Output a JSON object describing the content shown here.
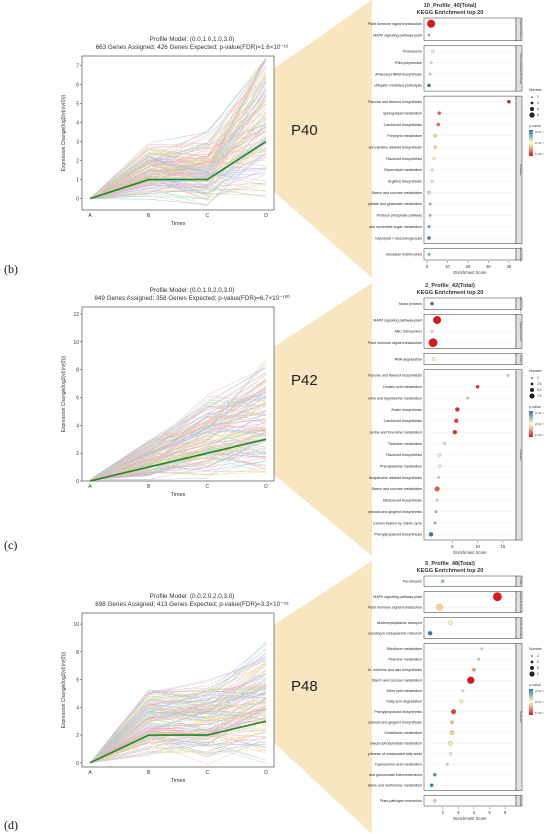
{
  "chart_data": [
    {
      "type": "line",
      "panel_label": "",
      "title": "Profile Model: (0.0,1.0,1.0,3.0)",
      "subtitle": "663 Genes Assigned; 426 Genes Expected; p-value(FDR)=1.6×10⁻¹⁶",
      "xlabel": "Times",
      "ylabel": "Expression Change(log2(v(i)/v(0)))",
      "categories": [
        "A",
        "B",
        "C",
        "D"
      ],
      "ylim": [
        -0.6,
        7.5
      ],
      "yticks": [
        0,
        1,
        2,
        3,
        4,
        5,
        6,
        7
      ],
      "profile": [
        0,
        1,
        1,
        3
      ],
      "tag": "P40"
    },
    {
      "type": "scatter",
      "title": "10_Profile_40(Total)",
      "subtitle": "KEGG Enrichment top 20",
      "xlabel": "Enrichment Score",
      "xlim": [
        0,
        42
      ],
      "xticks": [
        0,
        10,
        20,
        30,
        40
      ],
      "size_legend_title": "Number",
      "size_legend": [
        "2",
        "4",
        "6",
        "8"
      ],
      "color_legend_title": "p-value",
      "color_legend": [
        "3×10⁻¹",
        "2×10⁻¹",
        "1×10⁻¹"
      ],
      "groups": [
        {
          "label": "Organismal Systems",
          "terms": [
            {
              "term": "Plant hormone signal transduction",
              "x": 2,
              "count": 8,
              "p": 0.02
            },
            {
              "term": "MAPK signaling pathway-plant",
              "x": 1,
              "count": 1,
              "p": 0.25
            }
          ]
        },
        {
          "label": "Genetic Information Processing",
          "terms": [
            {
              "term": "Proteasome",
              "x": 3,
              "count": 2,
              "p": 0.18
            },
            {
              "term": "RNA polymerase",
              "x": 2,
              "count": 1,
              "p": 0.2
            },
            {
              "term": "Aminoacyl-tRNA biosynthesis",
              "x": 1.5,
              "count": 1,
              "p": 0.22
            },
            {
              "term": "Ubiquitin mediated proteolysis",
              "x": 1,
              "count": 2,
              "p": 0.3
            }
          ]
        },
        {
          "label": "Metabolism",
          "terms": [
            {
              "term": "Flavone and flavonol biosynthesis",
              "x": 40,
              "count": 2,
              "p": 0.02
            },
            {
              "term": "Sphingolipid metabolism",
              "x": 6,
              "count": 2,
              "p": 0.05
            },
            {
              "term": "Carotenoid biosynthesis",
              "x": 5.5,
              "count": 2,
              "p": 0.06
            },
            {
              "term": "Porphyrin metabolism",
              "x": 4,
              "count": 2,
              "p": 0.12
            },
            {
              "term": "Tropane, piperidine and pyridine alkaloid biosynthesis",
              "x": 4,
              "count": 2,
              "p": 0.13
            },
            {
              "term": "Flavonoid biosynthesis",
              "x": 3.5,
              "count": 2,
              "p": 0.15
            },
            {
              "term": "Glycerolipid metabolism",
              "x": 2.5,
              "count": 1,
              "p": 0.2
            },
            {
              "term": "Arginine biosynthesis",
              "x": 2.5,
              "count": 1,
              "p": 0.2
            },
            {
              "term": "Starch and sucrose metabolism",
              "x": 1,
              "count": 2,
              "p": 0.22
            },
            {
              "term": "Alanine, aspartate and glutamate metabolism",
              "x": 1.5,
              "count": 1,
              "p": 0.25
            },
            {
              "term": "Pentose phosphate pathway",
              "x": 1.5,
              "count": 1,
              "p": 0.25
            },
            {
              "term": "Amino sugar and nucleotide sugar metabolism",
              "x": 1,
              "count": 1,
              "p": 0.28
            },
            {
              "term": "Glycolysis / Gluconeogenesis",
              "x": 1,
              "count": 2,
              "p": 0.3
            }
          ]
        },
        {
          "label": "Environmental",
          "terms": [
            {
              "term": "Circadian rhythm-plant",
              "x": 1,
              "count": 1,
              "p": 0.26
            }
          ]
        }
      ]
    },
    {
      "type": "line",
      "panel_label": "(b)",
      "title": "Profile Model: (0.0,1.0,2.0,3.0)",
      "subtitle": "949 Genes Assigned; 358 Genes Expected; p-value(FDR)=6.7×10⁻¹⁰⁰",
      "xlabel": "Times",
      "ylabel": "Expression Change(log2(v(i)/v(0)))",
      "categories": [
        "A",
        "B",
        "C",
        "D"
      ],
      "ylim": [
        0,
        12.5
      ],
      "yticks": [
        0,
        2,
        4,
        6,
        8,
        10,
        12
      ],
      "profile": [
        0,
        1,
        2,
        3
      ],
      "tag": "P42"
    },
    {
      "type": "scatter",
      "title": "2_Profile_42(Total)",
      "subtitle": "KEGG Enrichment top 20",
      "xlabel": "Enrichment Score",
      "xlim": [
        0,
        17
      ],
      "xticks": [
        5,
        10,
        15
      ],
      "size_legend_title": "Number",
      "size_legend": [
        "2",
        "2.5",
        "5.0",
        "7.5"
      ],
      "color_legend_title": "p-value",
      "color_legend": [
        "3×10⁻¹",
        "2×10⁻¹",
        "1×10⁻¹"
      ],
      "groups": [
        {
          "label": "Cellular Processes",
          "terms": [
            {
              "term": "Motor proteins",
              "x": 1,
              "count": 2,
              "p": 0.3
            }
          ]
        },
        {
          "label": "Organismal Systems",
          "terms": [
            {
              "term": "MAPK signaling pathway-plant",
              "x": 2,
              "count": 8,
              "p": 0.02
            },
            {
              "term": "ABC transporters",
              "x": 1,
              "count": 1,
              "p": 0.22
            },
            {
              "term": "Plant hormone signal transduction",
              "x": 1.2,
              "count": 9,
              "p": 0.02
            }
          ]
        },
        {
          "label": "Genetic",
          "terms": [
            {
              "term": "RNA degradation",
              "x": 1.3,
              "count": 2,
              "p": 0.15
            }
          ]
        },
        {
          "label": "Metabolism",
          "terms": [
            {
              "term": "Flavone and flavonol biosynthesis",
              "x": 16,
              "count": 1,
              "p": 0.22
            },
            {
              "term": "Linoleic acid metabolism",
              "x": 10,
              "count": 2,
              "p": 0.03
            },
            {
              "term": "Taurine and hypotaurine metabolism",
              "x": 8,
              "count": 1,
              "p": 0.22
            },
            {
              "term": "Zeatin biosynthesis",
              "x": 6,
              "count": 3,
              "p": 0.03
            },
            {
              "term": "Carotenoid biosynthesis",
              "x": 5.8,
              "count": 3,
              "p": 0.04
            },
            {
              "term": "Glycine, serine and threonine metabolism",
              "x": 5.5,
              "count": 3,
              "p": 0.03
            },
            {
              "term": "Thiamine metabolism",
              "x": 3.5,
              "count": 1,
              "p": 0.22
            },
            {
              "term": "Flavonoid biosynthesis",
              "x": 2.5,
              "count": 2,
              "p": 0.18
            },
            {
              "term": "Phenylalanine metabolism",
              "x": 2.5,
              "count": 2,
              "p": 0.18
            },
            {
              "term": "Isoquinoline alkaloid biosynthesis",
              "x": 2.3,
              "count": 1,
              "p": 0.22
            },
            {
              "term": "Starch and sucrose metabolism",
              "x": 2,
              "count": 4,
              "p": 0.05
            },
            {
              "term": "Diterpenoid biosynthesis",
              "x": 2,
              "count": 1,
              "p": 0.22
            },
            {
              "term": "Stilbenoid, diarylheptanoid and gingerol biosynthesis",
              "x": 1.8,
              "count": 1,
              "p": 0.25
            },
            {
              "term": "Carbon fixation by Calvin cycle",
              "x": 1.6,
              "count": 1,
              "p": 0.25
            },
            {
              "term": "Phenylpropanoid biosynthesis",
              "x": 0.8,
              "count": 3,
              "p": 0.3
            }
          ]
        }
      ]
    },
    {
      "type": "line",
      "panel_label": "(c)",
      "title": "Profile Model: (0.0,2.0,2.0,3.0)",
      "subtitle": "898 Genes Assigned; 413 Genes Expected; p-value(FDR)=3.3×10⁻⁵⁸",
      "xlabel": "Times",
      "ylabel": "Expression Change(log2(v(i)/v(0)))",
      "categories": [
        "A",
        "B",
        "C",
        "D"
      ],
      "ylim": [
        -0.3,
        10.8
      ],
      "yticks": [
        0,
        2,
        4,
        6,
        8,
        10
      ],
      "profile": [
        0,
        2,
        2,
        3
      ],
      "tag": "P48"
    },
    {
      "type": "scatter",
      "title": "5_Profile_48(Total)",
      "subtitle": "KEGG Enrichment top 20",
      "xlabel": "Enrichment Score",
      "xlim": [
        1,
        6.5
      ],
      "xticks": [
        2,
        3,
        4,
        5,
        6
      ],
      "size_legend_title": "Number",
      "size_legend": [
        "4",
        "6",
        "8",
        "6"
      ],
      "color_legend_title": "p-value",
      "color_legend": [
        "3×10⁻¹",
        "2×10⁻¹",
        "1×10⁻¹"
      ],
      "groups": [
        {
          "label": "Cellular",
          "terms": [
            {
              "term": "Peroxisome",
              "x": 2,
              "count": 2,
              "p": 0.25
            }
          ]
        },
        {
          "label": "Organismal Systems",
          "terms": [
            {
              "term": "MAPK signaling pathway-plant",
              "x": 5.5,
              "count": 9,
              "p": 0.02
            },
            {
              "term": "Plant hormone signal transduction",
              "x": 1.8,
              "count": 6,
              "p": 0.12
            }
          ]
        },
        {
          "label": "Genetic Information",
          "terms": [
            {
              "term": "Nucleocytoplasmic transport",
              "x": 2.5,
              "count": 3,
              "p": 0.15
            },
            {
              "term": "Protein processing in endoplasmic reticulum",
              "x": 1.2,
              "count": 3,
              "p": 0.3
            }
          ]
        },
        {
          "label": "Metabolism",
          "terms": [
            {
              "term": "Riboflavin metabolism",
              "x": 4.5,
              "count": 1,
              "p": 0.22
            },
            {
              "term": "Thiamine metabolism",
              "x": 4.3,
              "count": 1,
              "p": 0.22
            },
            {
              "term": "Cutin, suberine and wax biosynthesis",
              "x": 4,
              "count": 2,
              "p": 0.08
            },
            {
              "term": "Starch and sucrose metabolism",
              "x": 3.8,
              "count": 7,
              "p": 0.02
            },
            {
              "term": "Ether lipid metabolism",
              "x": 3.3,
              "count": 1,
              "p": 0.2
            },
            {
              "term": "Fatty acid degradation",
              "x": 3.2,
              "count": 2,
              "p": 0.15
            },
            {
              "term": "Phenylpropanoid biosynthesis",
              "x": 2.7,
              "count": 4,
              "p": 0.04
            },
            {
              "term": "Stilbenoid, diarylheptanoid and gingerol biosynthesis",
              "x": 2.6,
              "count": 2,
              "p": 0.1
            },
            {
              "term": "Glutathione metabolism",
              "x": 2.6,
              "count": 3,
              "p": 0.12
            },
            {
              "term": "Glycerophospholipid metabolism",
              "x": 2.5,
              "count": 3,
              "p": 0.14
            },
            {
              "term": "Biosynthesis of unsaturated fatty acids",
              "x": 2.5,
              "count": 2,
              "p": 0.18
            },
            {
              "term": "Cyanoamino acid metabolism",
              "x": 2.3,
              "count": 1,
              "p": 0.22
            },
            {
              "term": "Pentose and glucuronate interconversions",
              "x": 1.5,
              "count": 2,
              "p": 0.28
            },
            {
              "term": "Cysteine and methionine metabolism",
              "x": 1.3,
              "count": 2,
              "p": 0.3
            }
          ]
        },
        {
          "label": "Organismal",
          "terms": [
            {
              "term": "Plant-pathogen interaction",
              "x": 1.5,
              "count": 2,
              "p": 0.22
            }
          ]
        }
      ]
    }
  ],
  "panel_letters": [
    "(b)",
    "(c)",
    "(d)"
  ],
  "colors": {
    "profile_line": "#1a8c1a",
    "beam": "#f7e6bf",
    "p_high": "#d7191c",
    "p_mid": "#fdae61",
    "p_low": "#2c7bb6"
  }
}
